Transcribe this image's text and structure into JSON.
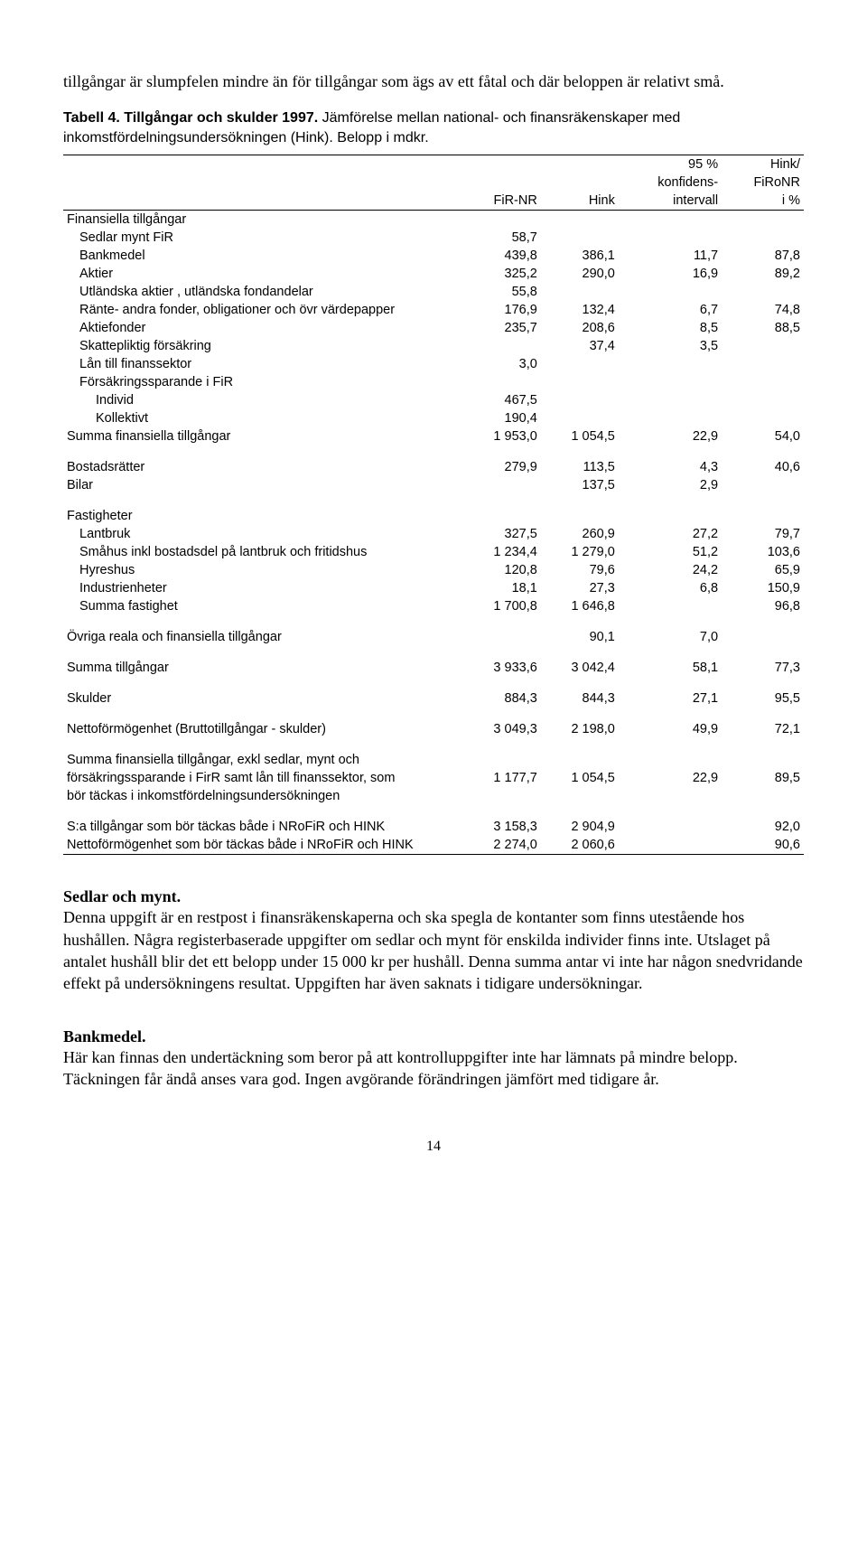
{
  "intro": "tillgångar är slumpfelen mindre än för tillgångar som ägs av ett fåtal och där beloppen är relativt små.",
  "table": {
    "title_bold": "Tabell 4. Tillgångar och skulder 1997.",
    "title_rest": " Jämförelse mellan national- och finansräkenskaper med inkomstfördelningsundersökningen (Hink). Belopp i mdkr.",
    "header": {
      "c1": "FiR-NR",
      "c2": "Hink",
      "c3a": "95 %",
      "c3b": "konfidens-",
      "c3c": "intervall",
      "c4a": "Hink/",
      "c4b": "FiRoNR",
      "c4c": "i %"
    },
    "groups": [
      {
        "rows": [
          {
            "label": "Finansiella tillgångar",
            "indent": 0,
            "c": [
              "",
              "",
              "",
              ""
            ]
          },
          {
            "label": "Sedlar mynt FiR",
            "indent": 1,
            "c": [
              "58,7",
              "",
              "",
              ""
            ]
          },
          {
            "label": "Bankmedel",
            "indent": 1,
            "c": [
              "439,8",
              "386,1",
              "11,7",
              "87,8"
            ]
          },
          {
            "label": "Aktier",
            "indent": 1,
            "c": [
              "325,2",
              "290,0",
              "16,9",
              "89,2"
            ]
          },
          {
            "label": "Utländska aktier , utländska fondandelar",
            "indent": 1,
            "c": [
              "55,8",
              "",
              "",
              ""
            ]
          },
          {
            "label": "Ränte- andra fonder, obligationer och övr värdepapper",
            "indent": 1,
            "c": [
              "176,9",
              "132,4",
              "6,7",
              "74,8"
            ]
          },
          {
            "label": "Aktiefonder",
            "indent": 1,
            "c": [
              "235,7",
              "208,6",
              "8,5",
              "88,5"
            ]
          },
          {
            "label": "Skattepliktig försäkring",
            "indent": 1,
            "c": [
              "",
              "37,4",
              "3,5",
              ""
            ]
          },
          {
            "label": "Lån till finanssektor",
            "indent": 1,
            "c": [
              "3,0",
              "",
              "",
              ""
            ]
          },
          {
            "label": "Försäkringssparande i FiR",
            "indent": 1,
            "c": [
              "",
              "",
              "",
              ""
            ]
          },
          {
            "label": "Individ",
            "indent": 2,
            "c": [
              "467,5",
              "",
              "",
              ""
            ]
          },
          {
            "label": "Kollektivt",
            "indent": 2,
            "c": [
              "190,4",
              "",
              "",
              ""
            ]
          },
          {
            "label": "Summa finansiella tillgångar",
            "indent": 0,
            "c": [
              "1 953,0",
              "1 054,5",
              "22,9",
              "54,0"
            ]
          }
        ]
      },
      {
        "rows": [
          {
            "label": "Bostadsrätter",
            "indent": 0,
            "c": [
              "279,9",
              "113,5",
              "4,3",
              "40,6"
            ]
          },
          {
            "label": "Bilar",
            "indent": 0,
            "c": [
              "",
              "137,5",
              "2,9",
              ""
            ]
          }
        ]
      },
      {
        "rows": [
          {
            "label": "Fastigheter",
            "indent": 0,
            "c": [
              "",
              "",
              "",
              ""
            ]
          },
          {
            "label": "Lantbruk",
            "indent": 1,
            "c": [
              "327,5",
              "260,9",
              "27,2",
              "79,7"
            ]
          },
          {
            "label": "Småhus inkl bostadsdel på lantbruk och fritidshus",
            "indent": 1,
            "c": [
              "1 234,4",
              "1 279,0",
              "51,2",
              "103,6"
            ]
          },
          {
            "label": "Hyreshus",
            "indent": 1,
            "c": [
              "120,8",
              "79,6",
              "24,2",
              "65,9"
            ]
          },
          {
            "label": "Industrienheter",
            "indent": 1,
            "c": [
              "18,1",
              "27,3",
              "6,8",
              "150,9"
            ]
          },
          {
            "label": "Summa fastighet",
            "indent": 1,
            "c": [
              "1 700,8",
              "1 646,8",
              "",
              "96,8"
            ]
          }
        ]
      },
      {
        "rows": [
          {
            "label": "Övriga reala och finansiella tillgångar",
            "indent": 0,
            "c": [
              "",
              "90,1",
              "7,0",
              ""
            ]
          }
        ]
      },
      {
        "rows": [
          {
            "label": "Summa tillgångar",
            "indent": 0,
            "c": [
              "3 933,6",
              "3 042,4",
              "58,1",
              "77,3"
            ]
          }
        ]
      },
      {
        "rows": [
          {
            "label": "Skulder",
            "indent": 0,
            "c": [
              "884,3",
              "844,3",
              "27,1",
              "95,5"
            ]
          }
        ]
      },
      {
        "rows": [
          {
            "label": "Nettoförmögenhet (Bruttotillgångar - skulder)",
            "indent": 0,
            "c": [
              "3 049,3",
              "2 198,0",
              "49,9",
              "72,1"
            ]
          }
        ]
      },
      {
        "rows": [
          {
            "label": "Summa finansiella tillgångar, exkl sedlar, mynt och",
            "indent": 0,
            "c": [
              "",
              "",
              "",
              ""
            ]
          },
          {
            "label": "försäkringssparande i FirR samt lån till finanssektor, som",
            "indent": 0,
            "c": [
              "1 177,7",
              "1 054,5",
              "22,9",
              "89,5"
            ]
          },
          {
            "label": "bör täckas i inkomstfördelningsundersökningen",
            "indent": 0,
            "c": [
              "",
              "",
              "",
              ""
            ]
          }
        ]
      },
      {
        "rows": [
          {
            "label": "S:a tillgångar som bör täckas både i NRoFiR och HINK",
            "indent": 0,
            "c": [
              "3 158,3",
              "2 904,9",
              "",
              "92,0"
            ]
          },
          {
            "label": "Nettoförmögenhet som bör täckas både i NRoFiR och HINK",
            "indent": 0,
            "c": [
              "2 274,0",
              "2 060,6",
              "",
              "90,6"
            ],
            "underline": true
          }
        ]
      }
    ]
  },
  "sections": [
    {
      "heading": "Sedlar och mynt.",
      "text": "Denna uppgift är en restpost i finansräkenskaperna och ska spegla de kontanter som finns utestående hos hushållen. Några registerbaserade uppgifter om sedlar och mynt för enskilda individer finns inte. Utslaget på antalet hushåll blir det ett belopp under 15 000 kr per hushåll. Denna summa antar vi inte har någon snedvridande effekt på undersökningens resultat. Uppgiften har även saknats i tidigare undersökningar."
    },
    {
      "heading": "Bankmedel.",
      "text": "Här kan finnas den undertäckning som beror på att kontrolluppgifter inte har lämnats på mindre belopp. Täckningen får ändå anses vara god. Ingen avgörande förändringen jämfört med tidigare år."
    }
  ],
  "page_number": "14"
}
